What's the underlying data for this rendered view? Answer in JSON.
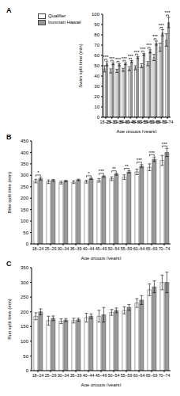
{
  "chart_data": [
    {
      "type": "bar",
      "title": "A",
      "x_label": "Age groups (years)",
      "y_label": "Swim split time (min)",
      "categories": [
        "18–24",
        "25–29",
        "30–34",
        "35–39",
        "40–44",
        "45–49",
        "50–54",
        "55–59",
        "60–64",
        "65–69",
        "70–74"
      ],
      "series": [
        {
          "name": "Qualifier",
          "color": "#ffffff",
          "values": [
            47,
            45,
            45,
            46,
            47,
            48,
            50,
            52,
            58,
            68,
            75
          ],
          "errors": [
            3,
            2,
            1.5,
            1.5,
            2,
            2,
            2,
            2,
            3,
            4,
            6
          ]
        },
        {
          "name": "Ironman Hawaii",
          "color": "#999999",
          "values": [
            52,
            52,
            51,
            52,
            54,
            58,
            61,
            64,
            72,
            82,
            92
          ],
          "errors": [
            2,
            1,
            1,
            1,
            1,
            1,
            1,
            1.5,
            2,
            3,
            5
          ]
        }
      ],
      "annotations": [
        "***",
        "***",
        "***",
        "***",
        "***",
        "***",
        "***",
        "***",
        "***",
        "***",
        "***"
      ],
      "ylim": [
        0,
        100
      ],
      "yticks": [
        0,
        10,
        20,
        30,
        40,
        50,
        60,
        70,
        80,
        90,
        100
      ],
      "legend": "upper left"
    },
    {
      "type": "bar",
      "title": "B",
      "x_label": "Age groups (years)",
      "y_label": "Bike split time (min)",
      "categories": [
        "18–24",
        "25–29",
        "30–34",
        "35–39",
        "40–44",
        "45–49",
        "50–54",
        "55–59",
        "60–64",
        "65–69",
        "70–74"
      ],
      "series": [
        {
          "name": "Qualifier",
          "color": "#ffffff",
          "values": [
            275,
            272,
            268,
            270,
            272,
            278,
            285,
            292,
            315,
            335,
            365
          ],
          "errors": [
            8,
            8,
            6,
            6,
            6,
            8,
            8,
            10,
            12,
            15,
            22
          ]
        },
        {
          "name": "Ironman Hawaii",
          "color": "#999999",
          "values": [
            285,
            278,
            275,
            280,
            285,
            295,
            305,
            315,
            340,
            370,
            400
          ],
          "errors": [
            6,
            4,
            3,
            3,
            3,
            3,
            4,
            5,
            7,
            10,
            18
          ]
        }
      ],
      "annotations": [
        "*",
        null,
        null,
        null,
        "*",
        "***",
        "**",
        "**",
        "***",
        "***",
        "***"
      ],
      "ylim": [
        0,
        450
      ],
      "yticks": [
        0,
        50,
        100,
        150,
        200,
        250,
        300,
        350,
        400,
        450
      ]
    },
    {
      "type": "bar",
      "title": "C",
      "x_label": "Age groups (years)",
      "y_label": "Run split time (min)",
      "categories": [
        "18–24",
        "25–29",
        "30–34",
        "35–39",
        "40–44",
        "45–49",
        "50–54",
        "55–59",
        "60–64",
        "65–69",
        "70–74"
      ],
      "series": [
        {
          "name": "Qualifier",
          "color": "#ffffff",
          "values": [
            185,
            170,
            168,
            170,
            180,
            185,
            198,
            205,
            230,
            275,
            300
          ],
          "errors": [
            12,
            15,
            8,
            8,
            15,
            20,
            10,
            12,
            15,
            20,
            25
          ]
        },
        {
          "name": "Ironman Hawaii",
          "color": "#999999",
          "values": [
            200,
            178,
            172,
            173,
            185,
            190,
            205,
            215,
            240,
            285,
            300
          ],
          "errors": [
            10,
            8,
            5,
            5,
            8,
            25,
            8,
            10,
            15,
            20,
            35
          ]
        }
      ],
      "annotations": [
        null,
        null,
        null,
        null,
        null,
        null,
        null,
        null,
        null,
        null,
        null
      ],
      "ylim": [
        0,
        350
      ],
      "yticks": [
        0,
        50,
        100,
        150,
        200,
        250,
        300,
        350
      ]
    }
  ]
}
